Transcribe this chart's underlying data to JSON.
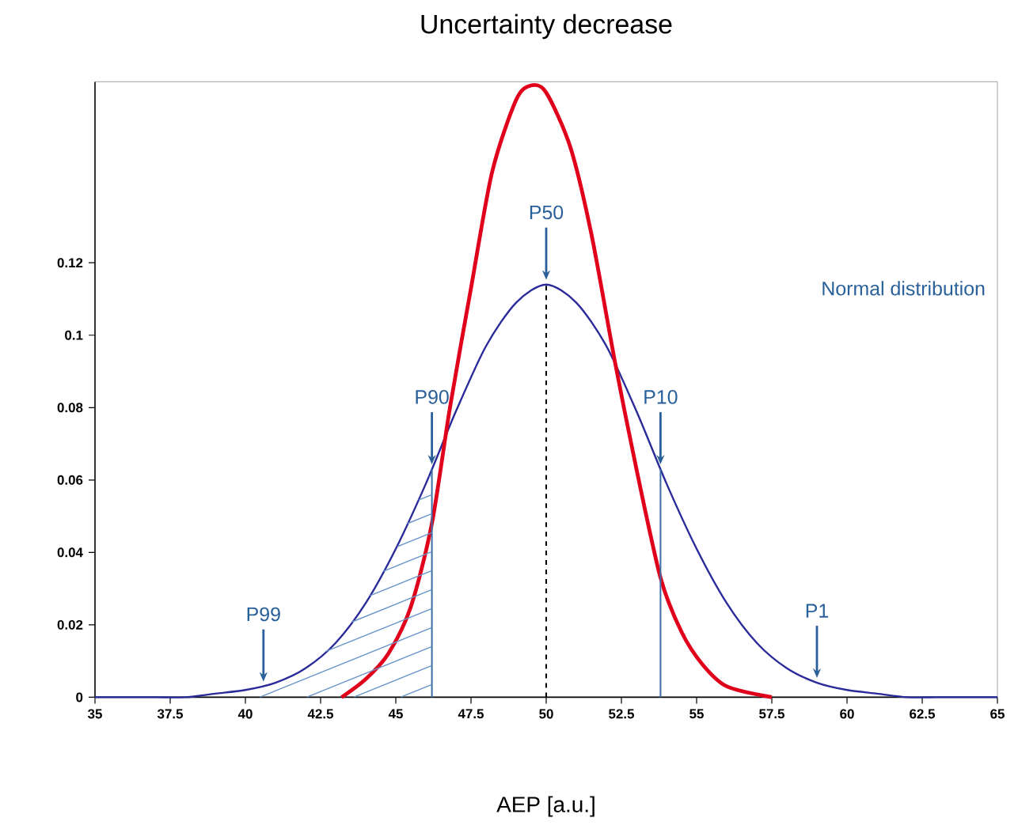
{
  "chart_data": {
    "type": "line",
    "title": "Uncertainty decrease",
    "xlabel": "AEP [a.u.]",
    "xlim": [
      35,
      65
    ],
    "xticks": [
      35,
      37.5,
      40,
      42.5,
      45,
      47.5,
      50,
      52.5,
      55,
      57.5,
      60,
      62.5,
      65
    ],
    "ylim": [
      0,
      0.17
    ],
    "yticks": [
      0,
      0.02,
      0.04,
      0.06,
      0.08,
      0.1,
      0.12
    ],
    "series": [
      {
        "color": "#2a2a9a",
        "x": [
          35,
          36,
          37,
          38,
          39,
          40,
          41,
          42,
          43,
          44,
          45,
          46,
          47,
          48,
          49,
          50,
          51,
          52,
          53,
          54,
          55,
          56,
          57,
          58,
          59,
          60,
          61,
          62,
          63,
          64,
          65
        ],
        "values": [
          0,
          0,
          0,
          0,
          0.001,
          0.002,
          0.004,
          0.008,
          0.015,
          0.026,
          0.041,
          0.059,
          0.079,
          0.097,
          0.109,
          0.114,
          0.109,
          0.097,
          0.079,
          0.059,
          0.041,
          0.026,
          0.015,
          0.008,
          0.004,
          0.002,
          0.001,
          0,
          0,
          0,
          0
        ]
      },
      {
        "color": "#e0001b",
        "x": [
          43.2,
          44,
          44.75,
          45.5,
          46.2,
          46.8,
          47.5,
          48.2,
          49,
          49.5,
          50,
          50.8,
          51.5,
          52.3,
          53,
          53.8,
          54.5,
          55.2,
          56,
          57.5
        ],
        "values": [
          0,
          0.005,
          0.012,
          0.025,
          0.048,
          0.08,
          0.113,
          0.145,
          0.165,
          0.169,
          0.167,
          0.152,
          0.128,
          0.092,
          0.063,
          0.033,
          0.018,
          0.009,
          0.003,
          0
        ]
      }
    ],
    "ref_lines": [
      {
        "axis": "x",
        "value": 50,
        "color": "#000000",
        "line_style": "dashed"
      },
      {
        "axis": "x",
        "value": 46.2,
        "color": "#3a6ea5"
      },
      {
        "axis": "x",
        "value": 53.8,
        "color": "#3a6ea5"
      }
    ],
    "annotations": [
      {
        "text": "P50",
        "x": 50,
        "y": 0.114
      },
      {
        "text": "P90",
        "x": 46.2,
        "y": 0.063
      },
      {
        "text": "P10",
        "x": 53.8,
        "y": 0.063
      },
      {
        "text": "P99",
        "x": 40.6,
        "y": 0.003
      },
      {
        "text": "P1",
        "x": 59,
        "y": 0.004
      },
      "Normal distribution"
    ]
  }
}
